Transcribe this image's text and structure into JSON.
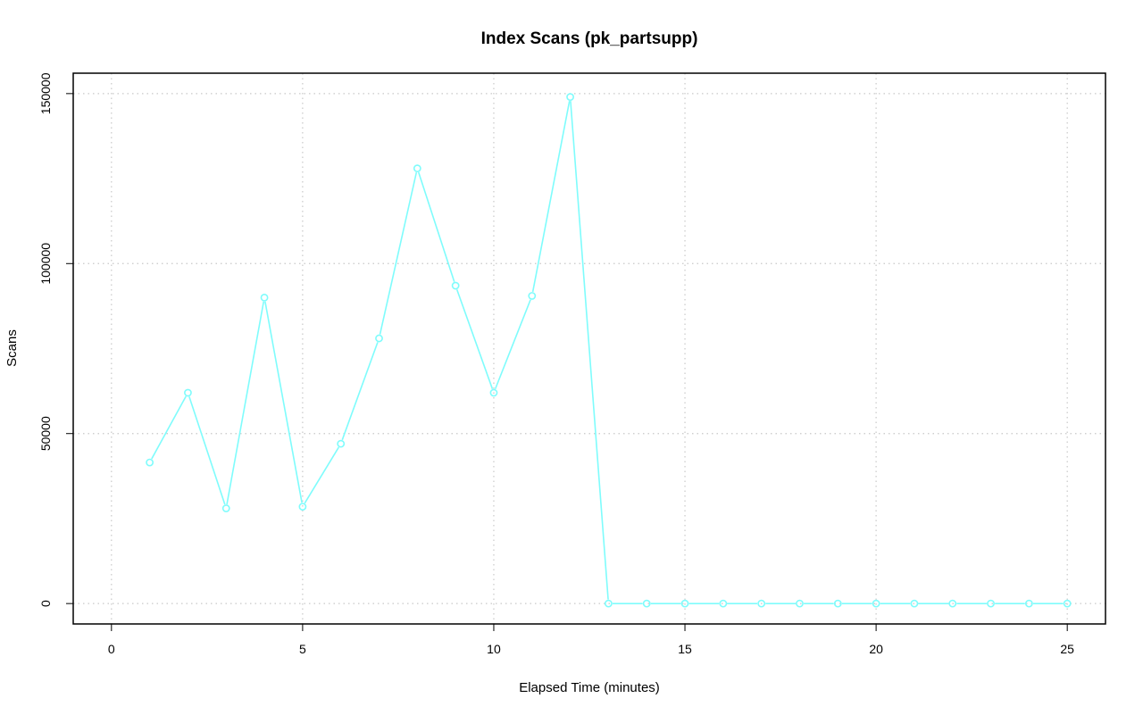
{
  "chart_data": {
    "type": "line",
    "title": "Index Scans (pk_partsupp)",
    "xlabel": "Elapsed Time (minutes)",
    "ylabel": "Scans",
    "xlim": [
      -1,
      26
    ],
    "ylim": [
      -6000,
      156000
    ],
    "xticks": [
      0,
      5,
      10,
      15,
      20,
      25
    ],
    "yticks": [
      0,
      50000,
      100000,
      150000
    ],
    "grid": true,
    "legend": "none",
    "series": [
      {
        "color": "#7ffcfc",
        "marker": "open-circle",
        "x": [
          1,
          2,
          3,
          4,
          5,
          6,
          7,
          8,
          9,
          10,
          11,
          12,
          13,
          14,
          15,
          16,
          17,
          18,
          19,
          20,
          21,
          22,
          23,
          24,
          25
        ],
        "y": [
          41500,
          62000,
          28000,
          90000,
          28500,
          47000,
          78000,
          128000,
          93500,
          62000,
          90500,
          149000,
          0,
          0,
          0,
          0,
          0,
          0,
          0,
          0,
          0,
          0,
          0,
          0,
          0
        ]
      }
    ]
  }
}
